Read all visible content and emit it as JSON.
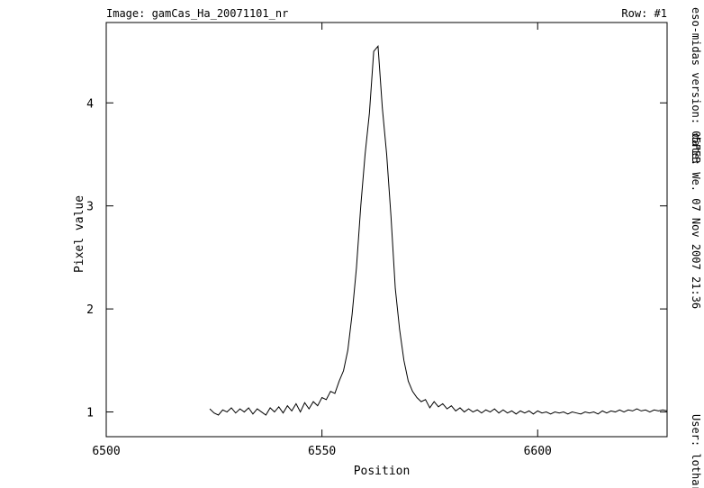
{
  "chart_data": {
    "type": "line",
    "title": "Image:  gamCas_Ha_20071101_nr",
    "subtitle": "Row:  #1",
    "x_label": "Position",
    "y_label": "Pixel value",
    "annotations": [
      "eso-midas version: 05FEB",
      "date: We. 07 Nov 2007 21:36",
      "User: lothar"
    ],
    "color": "#000000",
    "xlim": [
      6500,
      6630
    ],
    "xticks": [
      6500,
      6550,
      6600
    ],
    "ylim": [
      0.76,
      4.78
    ],
    "yticks": [
      1,
      2,
      3,
      4
    ],
    "x": [
      6524,
      6525,
      6526,
      6527,
      6528,
      6529,
      6530,
      6531,
      6532,
      6533,
      6534,
      6535,
      6536,
      6537,
      6538,
      6539,
      6540,
      6541,
      6542,
      6543,
      6544,
      6545,
      6546,
      6547,
      6548,
      6549,
      6550,
      6551,
      6552,
      6553,
      6554,
      6555,
      6556,
      6557,
      6558,
      6559,
      6560,
      6561,
      6562,
      6563,
      6564,
      6565,
      6566,
      6567,
      6568,
      6569,
      6570,
      6571,
      6572,
      6573,
      6574,
      6575,
      6576,
      6577,
      6578,
      6579,
      6580,
      6581,
      6582,
      6583,
      6584,
      6585,
      6586,
      6587,
      6588,
      6589,
      6590,
      6591,
      6592,
      6593,
      6594,
      6595,
      6596,
      6597,
      6598,
      6599,
      6600,
      6601,
      6602,
      6603,
      6604,
      6605,
      6606,
      6607,
      6608,
      6609,
      6610,
      6611,
      6612,
      6613,
      6614,
      6615,
      6616,
      6617,
      6618,
      6619,
      6620,
      6621,
      6622,
      6623,
      6624,
      6625,
      6626,
      6627,
      6628,
      6629,
      6630
    ],
    "values": [
      1.03,
      0.99,
      0.97,
      1.02,
      1.0,
      1.04,
      0.99,
      1.03,
      1.0,
      1.04,
      0.98,
      1.03,
      1.0,
      0.97,
      1.04,
      1.0,
      1.05,
      0.99,
      1.06,
      1.01,
      1.08,
      1.0,
      1.09,
      1.03,
      1.1,
      1.06,
      1.14,
      1.12,
      1.2,
      1.18,
      1.3,
      1.4,
      1.6,
      1.95,
      2.4,
      3.0,
      3.5,
      3.9,
      4.5,
      4.55,
      3.95,
      3.5,
      2.9,
      2.2,
      1.8,
      1.5,
      1.3,
      1.2,
      1.14,
      1.1,
      1.12,
      1.04,
      1.1,
      1.05,
      1.08,
      1.03,
      1.06,
      1.01,
      1.04,
      1.0,
      1.03,
      1.0,
      1.02,
      0.99,
      1.02,
      1.0,
      1.03,
      0.99,
      1.02,
      0.99,
      1.01,
      0.98,
      1.01,
      0.99,
      1.01,
      0.98,
      1.01,
      0.99,
      1.0,
      0.98,
      1.0,
      0.99,
      1.0,
      0.98,
      1.0,
      0.99,
      0.98,
      1.0,
      0.99,
      1.0,
      0.98,
      1.01,
      0.99,
      1.01,
      1.0,
      1.02,
      1.0,
      1.02,
      1.01,
      1.03,
      1.01,
      1.02,
      1.0,
      1.02,
      1.01,
      1.02,
      1.01
    ]
  }
}
